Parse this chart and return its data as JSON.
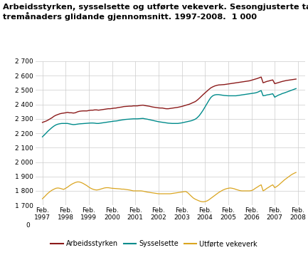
{
  "title_line1": "Arbeidsstyrken, sysselsette og utførte vekeverk. Sesongjusterte tal,",
  "title_line2": "tremånaders glidande gjennomsnitt. 1997-2008.  1 000",
  "title_fontsize": 8.2,
  "ylim": [
    1700,
    2700
  ],
  "yticks": [
    1700,
    1800,
    1900,
    2000,
    2100,
    2200,
    2300,
    2400,
    2500,
    2600,
    2700
  ],
  "ytick_labels": [
    "1 700",
    "1 800",
    "1 900",
    "2 000",
    "2 100",
    "2 200",
    "2 300",
    "2 400",
    "2 500",
    "2 600",
    "2 700"
  ],
  "xtick_years": [
    1997,
    1998,
    1999,
    2000,
    2001,
    2002,
    2003,
    2004,
    2005,
    2006,
    2007,
    2008
  ],
  "colors": {
    "arbeidsstyrken": "#8B1A1A",
    "sysselsette": "#008B8B",
    "utforte": "#DAA520"
  },
  "legend_labels": [
    "Arbeidsstyrken",
    "Sysselsette",
    "Utførte vekeverk"
  ],
  "arbeidsstyrken": [
    2275,
    2280,
    2285,
    2292,
    2300,
    2308,
    2318,
    2325,
    2330,
    2335,
    2338,
    2340,
    2342,
    2345,
    2342,
    2342,
    2340,
    2342,
    2348,
    2352,
    2354,
    2355,
    2355,
    2355,
    2358,
    2360,
    2360,
    2362,
    2362,
    2360,
    2362,
    2364,
    2366,
    2368,
    2370,
    2370,
    2372,
    2374,
    2375,
    2378,
    2380,
    2382,
    2385,
    2386,
    2387,
    2388,
    2388,
    2390,
    2390,
    2390,
    2392,
    2394,
    2395,
    2392,
    2390,
    2388,
    2385,
    2382,
    2380,
    2378,
    2376,
    2375,
    2375,
    2372,
    2370,
    2370,
    2372,
    2374,
    2376,
    2378,
    2380,
    2383,
    2386,
    2390,
    2394,
    2398,
    2402,
    2408,
    2414,
    2420,
    2430,
    2442,
    2455,
    2468,
    2480,
    2492,
    2504,
    2515,
    2522,
    2528,
    2532,
    2535,
    2536,
    2537,
    2538,
    2540,
    2542,
    2544,
    2546,
    2548,
    2550,
    2552,
    2554,
    2556,
    2558,
    2560,
    2562,
    2564,
    2568,
    2572,
    2576,
    2580,
    2585,
    2590,
    2550,
    2555,
    2560,
    2563,
    2567,
    2570,
    2544,
    2548,
    2552,
    2556,
    2560,
    2563,
    2566,
    2568,
    2570,
    2572,
    2574,
    2576
  ],
  "sysselsette": [
    2175,
    2188,
    2202,
    2216,
    2228,
    2240,
    2250,
    2258,
    2263,
    2266,
    2268,
    2268,
    2268,
    2268,
    2265,
    2262,
    2260,
    2261,
    2263,
    2265,
    2266,
    2267,
    2268,
    2269,
    2270,
    2271,
    2271,
    2270,
    2268,
    2268,
    2270,
    2272,
    2274,
    2276,
    2278,
    2280,
    2282,
    2284,
    2285,
    2287,
    2290,
    2292,
    2294,
    2296,
    2297,
    2298,
    2299,
    2300,
    2300,
    2300,
    2301,
    2302,
    2303,
    2300,
    2298,
    2295,
    2292,
    2289,
    2286,
    2283,
    2280,
    2278,
    2276,
    2274,
    2272,
    2270,
    2269,
    2268,
    2268,
    2268,
    2268,
    2270,
    2272,
    2275,
    2278,
    2281,
    2284,
    2287,
    2292,
    2298,
    2308,
    2322,
    2340,
    2360,
    2382,
    2405,
    2428,
    2448,
    2460,
    2466,
    2468,
    2468,
    2466,
    2464,
    2462,
    2461,
    2460,
    2460,
    2460,
    2460,
    2460,
    2462,
    2464,
    2466,
    2468,
    2470,
    2472,
    2474,
    2476,
    2478,
    2480,
    2484,
    2490,
    2496,
    2460,
    2462,
    2466,
    2468,
    2471,
    2474,
    2450,
    2458,
    2465,
    2470,
    2476,
    2480,
    2485,
    2490,
    2495,
    2500,
    2505,
    2510
  ],
  "utforte": [
    1745,
    1758,
    1772,
    1785,
    1796,
    1805,
    1812,
    1818,
    1820,
    1818,
    1814,
    1810,
    1818,
    1826,
    1836,
    1845,
    1852,
    1858,
    1862,
    1862,
    1858,
    1852,
    1844,
    1836,
    1826,
    1818,
    1812,
    1808,
    1806,
    1808,
    1812,
    1816,
    1820,
    1822,
    1822,
    1820,
    1818,
    1817,
    1816,
    1815,
    1814,
    1812,
    1812,
    1810,
    1808,
    1806,
    1803,
    1800,
    1800,
    1800,
    1800,
    1800,
    1798,
    1795,
    1792,
    1790,
    1788,
    1786,
    1784,
    1782,
    1780,
    1780,
    1780,
    1780,
    1780,
    1780,
    1780,
    1782,
    1784,
    1786,
    1788,
    1790,
    1792,
    1794,
    1796,
    1788,
    1775,
    1762,
    1750,
    1742,
    1736,
    1730,
    1726,
    1724,
    1726,
    1730,
    1738,
    1748,
    1758,
    1768,
    1778,
    1788,
    1796,
    1804,
    1810,
    1815,
    1818,
    1820,
    1818,
    1815,
    1810,
    1806,
    1802,
    1800,
    1800,
    1800,
    1800,
    1800,
    1802,
    1808,
    1818,
    1826,
    1835,
    1842,
    1800,
    1808,
    1818,
    1826,
    1835,
    1842,
    1822,
    1830,
    1840,
    1852,
    1864,
    1876,
    1886,
    1896,
    1906,
    1915,
    1922,
    1928
  ]
}
